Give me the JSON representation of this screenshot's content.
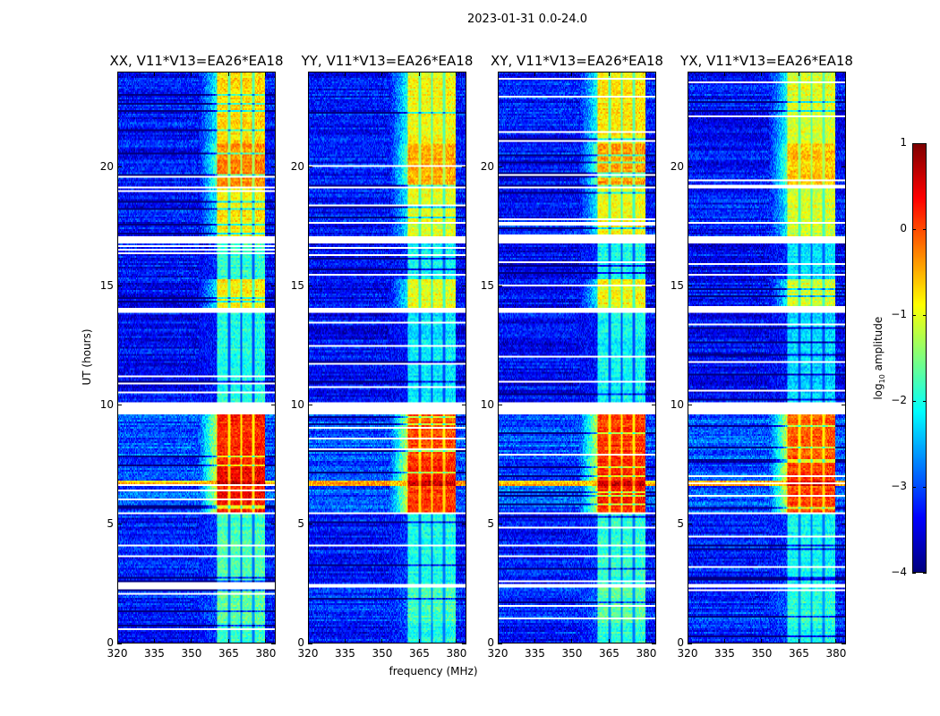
{
  "suptitle": "2023-01-31 0.0-24.0",
  "chart_data": {
    "type": "heatmap",
    "title": "2023-01-31 0.0-24.0",
    "xlabel": "frequency (MHz)",
    "ylabel": "UT (hours)",
    "xlim": [
      320,
      384
    ],
    "ylim": [
      0,
      24
    ],
    "xticks": [
      320,
      335,
      350,
      365,
      380
    ],
    "yticks": [
      0,
      5,
      10,
      15,
      20
    ],
    "colormap": "jet",
    "colorbar": {
      "label_parts": [
        "log",
        "10",
        " amplitude"
      ],
      "range": [
        -4,
        1
      ],
      "ticks": [
        1,
        0,
        -1,
        -2,
        -3,
        -4
      ],
      "tick_labels": [
        "1",
        "0",
        "−1",
        "−2",
        "−3",
        "−4"
      ]
    },
    "panels": [
      {
        "title": "XX, V11*V13=EA26*EA18",
        "band_offset": 0.0
      },
      {
        "title": "YY, V11*V13=EA26*EA18",
        "band_offset": -0.2
      },
      {
        "title": "XY, V11*V13=EA26*EA18",
        "band_offset": -0.1
      },
      {
        "title": "YX, V11*V13=EA26*EA18",
        "band_offset": -0.3
      }
    ],
    "band_mhz": [
      360.5,
      380
    ],
    "band_gaps_mhz": [
      365.3,
      370.3,
      375.2
    ],
    "time_segments": [
      {
        "t0": 0.0,
        "t1": 0.8,
        "bg": -3.3,
        "band": -1.8
      },
      {
        "t0": 0.8,
        "t1": 2.3,
        "bg": -3.2,
        "band": -1.6
      },
      {
        "t0": 2.3,
        "t1": 2.5,
        "bg": null,
        "band": null
      },
      {
        "t0": 2.5,
        "t1": 5.4,
        "bg": -3.3,
        "band": -1.8
      },
      {
        "t0": 5.4,
        "t1": 5.5,
        "bg": null,
        "band": null
      },
      {
        "t0": 5.5,
        "t1": 6.6,
        "bg": -3.0,
        "band": 0.3
      },
      {
        "t0": 6.6,
        "t1": 6.8,
        "bg": -0.6,
        "band": 0.7
      },
      {
        "t0": 6.8,
        "t1": 7.7,
        "bg": -3.0,
        "band": 0.4
      },
      {
        "t0": 7.7,
        "t1": 9.6,
        "bg": -3.0,
        "band": 0.2
      },
      {
        "t0": 9.6,
        "t1": 10.1,
        "bg": null,
        "band": null
      },
      {
        "t0": 10.1,
        "t1": 13.9,
        "bg": -3.4,
        "band": -2.0
      },
      {
        "t0": 13.9,
        "t1": 14.1,
        "bg": null,
        "band": null
      },
      {
        "t0": 14.1,
        "t1": 15.3,
        "bg": -3.4,
        "band": -0.8
      },
      {
        "t0": 15.3,
        "t1": 16.8,
        "bg": -3.4,
        "band": -1.9
      },
      {
        "t0": 16.8,
        "t1": 17.1,
        "bg": null,
        "band": null
      },
      {
        "t0": 17.1,
        "t1": 19.2,
        "bg": -3.3,
        "band": -0.8
      },
      {
        "t0": 19.2,
        "t1": 21.0,
        "bg": -3.3,
        "band": -0.3
      },
      {
        "t0": 21.0,
        "t1": 24.0,
        "bg": -3.3,
        "band": -0.7
      }
    ]
  }
}
